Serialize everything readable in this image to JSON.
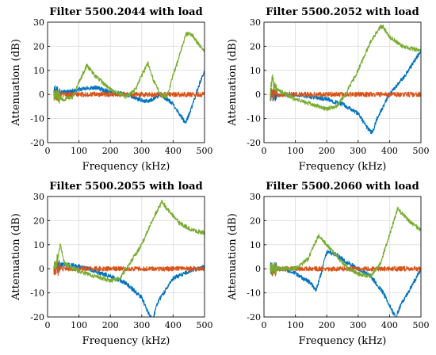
{
  "colors": {
    "blue": "#0072BD",
    "orange": "#D95319",
    "green": "#77AC30"
  },
  "chart_data": [
    {
      "type": "line",
      "title": "Filter 5500.2044 with load",
      "xlabel": "Frequency (kHz)",
      "ylabel": "Attenuation (dB)",
      "xlim": [
        0,
        500
      ],
      "ylim": [
        -20,
        30
      ],
      "xticks": [
        0,
        100,
        200,
        300,
        400,
        500
      ],
      "yticks": [
        -20,
        -10,
        0,
        10,
        20,
        30
      ],
      "grid": true,
      "series": [
        {
          "color": "blue",
          "x": [
            20,
            60,
            100,
            150,
            200,
            250,
            290,
            320,
            360,
            400,
            420,
            440,
            460,
            480,
            500
          ],
          "y": [
            1,
            1,
            2,
            3,
            1,
            0,
            -2,
            -3,
            0,
            -4,
            -8,
            -12,
            -5,
            3,
            10
          ]
        },
        {
          "color": "orange",
          "x": [
            20,
            100,
            200,
            300,
            400,
            500
          ],
          "y": [
            0,
            0,
            0,
            0,
            0,
            0
          ]
        },
        {
          "color": "green",
          "x": [
            20,
            50,
            80,
            100,
            125,
            150,
            200,
            250,
            280,
            300,
            320,
            340,
            360,
            380,
            400,
            420,
            440,
            460,
            480,
            500
          ],
          "y": [
            0,
            -2,
            -1,
            5,
            12,
            8,
            2,
            -1,
            2,
            8,
            13,
            5,
            0,
            -1,
            8,
            16,
            25,
            25,
            21,
            18
          ]
        }
      ]
    },
    {
      "type": "line",
      "title": "Filter 5500.2052 with load",
      "xlabel": "Frequency (kHz)",
      "ylabel": "Attenuation (dB)",
      "xlim": [
        0,
        500
      ],
      "ylim": [
        -20,
        30
      ],
      "xticks": [
        0,
        100,
        200,
        300,
        400,
        500
      ],
      "yticks": [
        -20,
        -10,
        0,
        10,
        20,
        30
      ],
      "grid": true,
      "series": [
        {
          "color": "blue",
          "x": [
            20,
            100,
            200,
            250,
            300,
            330,
            345,
            360,
            400,
            450,
            500
          ],
          "y": [
            0,
            0,
            -2,
            -4,
            -8,
            -14,
            -16,
            -10,
            0,
            8,
            18
          ]
        },
        {
          "color": "orange",
          "x": [
            20,
            100,
            200,
            300,
            400,
            500
          ],
          "y": [
            0,
            0,
            0,
            0,
            0,
            0
          ]
        },
        {
          "color": "green",
          "x": [
            20,
            25,
            40,
            100,
            150,
            200,
            230,
            260,
            300,
            340,
            370,
            380,
            400,
            440,
            500
          ],
          "y": [
            0,
            7,
            2,
            -2,
            -4,
            -6,
            -5,
            0,
            10,
            22,
            28,
            28,
            24,
            20,
            18
          ]
        }
      ]
    },
    {
      "type": "line",
      "title": "Filter 5500.2055 with load",
      "xlabel": "Frequency (kHz)",
      "ylabel": "Attenuation (dB)",
      "xlim": [
        0,
        500
      ],
      "ylim": [
        -20,
        30
      ],
      "xticks": [
        0,
        100,
        200,
        300,
        400,
        500
      ],
      "yticks": [
        -20,
        -10,
        0,
        10,
        20,
        30
      ],
      "grid": true,
      "series": [
        {
          "color": "blue",
          "x": [
            20,
            50,
            100,
            150,
            200,
            250,
            300,
            320,
            335,
            350,
            400,
            450,
            500
          ],
          "y": [
            0,
            2,
            1,
            -1,
            -3,
            -6,
            -12,
            -18,
            -21,
            -14,
            -4,
            -1,
            1
          ]
        },
        {
          "color": "orange",
          "x": [
            20,
            100,
            200,
            300,
            400,
            500
          ],
          "y": [
            0,
            0,
            0,
            0,
            0,
            0
          ]
        },
        {
          "color": "green",
          "x": [
            20,
            30,
            40,
            55,
            100,
            150,
            200,
            230,
            260,
            300,
            340,
            365,
            380,
            420,
            460,
            500
          ],
          "y": [
            0,
            3,
            10,
            2,
            -1,
            -3,
            -5,
            -4,
            2,
            10,
            22,
            28,
            25,
            19,
            16,
            15
          ]
        }
      ]
    },
    {
      "type": "line",
      "title": "Filter 5500.2060 with load",
      "xlabel": "Frequency (kHz)",
      "ylabel": "Attenuation (dB)",
      "xlim": [
        0,
        500
      ],
      "ylim": [
        -20,
        30
      ],
      "xticks": [
        0,
        100,
        200,
        300,
        400,
        500
      ],
      "yticks": [
        -20,
        -10,
        0,
        10,
        20,
        30
      ],
      "grid": true,
      "series": [
        {
          "color": "blue",
          "x": [
            20,
            60,
            100,
            150,
            165,
            180,
            200,
            230,
            260,
            300,
            340,
            380,
            410,
            420,
            440,
            480,
            500
          ],
          "y": [
            0,
            0,
            -2,
            -6,
            -9,
            -3,
            7,
            6,
            3,
            0,
            -3,
            -10,
            -18,
            -20,
            -14,
            -5,
            0
          ]
        },
        {
          "color": "orange",
          "x": [
            20,
            100,
            200,
            300,
            400,
            500
          ],
          "y": [
            0,
            0,
            0,
            0,
            0,
            0
          ]
        },
        {
          "color": "green",
          "x": [
            20,
            60,
            100,
            140,
            160,
            175,
            200,
            240,
            270,
            300,
            340,
            370,
            400,
            425,
            440,
            470,
            500
          ],
          "y": [
            0,
            0,
            0,
            4,
            10,
            14,
            10,
            4,
            0,
            -2,
            -3,
            2,
            14,
            25,
            23,
            19,
            16
          ]
        }
      ]
    }
  ]
}
